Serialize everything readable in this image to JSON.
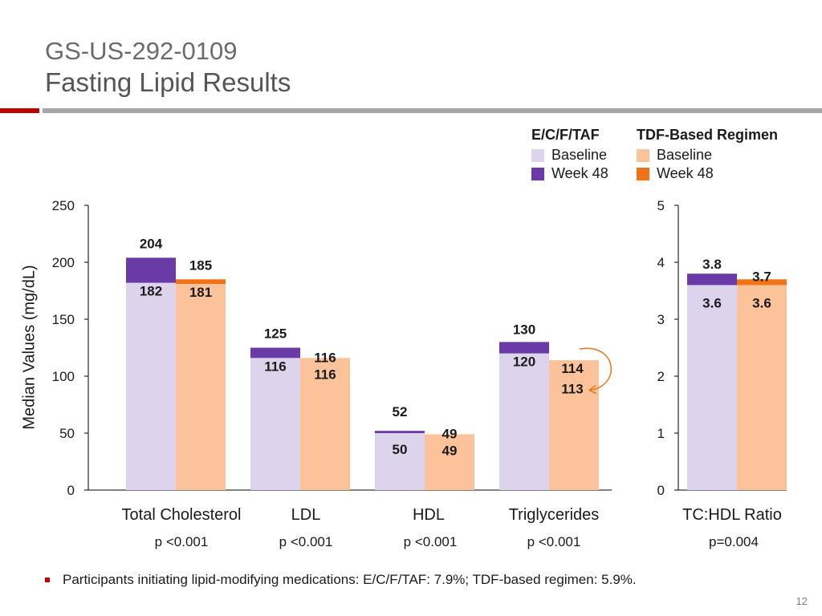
{
  "header": {
    "study_id": "GS-US-292-0109",
    "title": "Fasting Lipid Results"
  },
  "legend": {
    "group1": {
      "title": "E/C/F/TAF",
      "baseline": "Baseline",
      "week48": "Week 48"
    },
    "group2": {
      "title": "TDF-Based Regimen",
      "baseline": "Baseline",
      "week48": "Week 48"
    }
  },
  "colors": {
    "ecf_baseline": "#ddd3ec",
    "ecf_week48": "#6a3aa6",
    "tdf_baseline": "#fcc39a",
    "tdf_week48": "#f07417",
    "axis": "#000000",
    "arrow": "#f07417"
  },
  "footnote": "Participants initiating lipid-modifying medications: E/C/F/TAF: 7.9%; TDF-based regimen: 5.9%.",
  "page_number": "12",
  "chart_data": [
    {
      "type": "bar",
      "ylabel": "Median Values (mg/dL)",
      "ylim": [
        0,
        250
      ],
      "yticks": [
        0,
        50,
        100,
        150,
        200,
        250
      ],
      "categories": [
        "Total Cholesterol",
        "LDL",
        "HDL",
        "Triglycerides"
      ],
      "p_values": [
        "p <0.001",
        "p <0.001",
        "p <0.001",
        "p <0.001"
      ],
      "series": [
        {
          "name": "E/C/F/TAF Baseline",
          "values": [
            182,
            116,
            50,
            120
          ]
        },
        {
          "name": "E/C/F/TAF Week 48",
          "values": [
            204,
            125,
            52,
            130
          ]
        },
        {
          "name": "TDF-Based Regimen Baseline",
          "values": [
            181,
            116,
            49,
            114
          ]
        },
        {
          "name": "TDF-Based Regimen Week 48",
          "values": [
            185,
            116,
            49,
            113
          ]
        }
      ]
    },
    {
      "type": "bar",
      "ylabel": "",
      "ylim": [
        0,
        5
      ],
      "yticks": [
        0,
        1,
        2,
        3,
        4,
        5
      ],
      "categories": [
        "TC:HDL Ratio"
      ],
      "p_values": [
        "p=0.004"
      ],
      "series": [
        {
          "name": "E/C/F/TAF Baseline",
          "values": [
            3.6
          ]
        },
        {
          "name": "E/C/F/TAF Week 48",
          "values": [
            3.8
          ]
        },
        {
          "name": "TDF-Based Regimen Baseline",
          "values": [
            3.6
          ]
        },
        {
          "name": "TDF-Based Regimen Week 48",
          "values": [
            3.7
          ]
        }
      ]
    }
  ]
}
